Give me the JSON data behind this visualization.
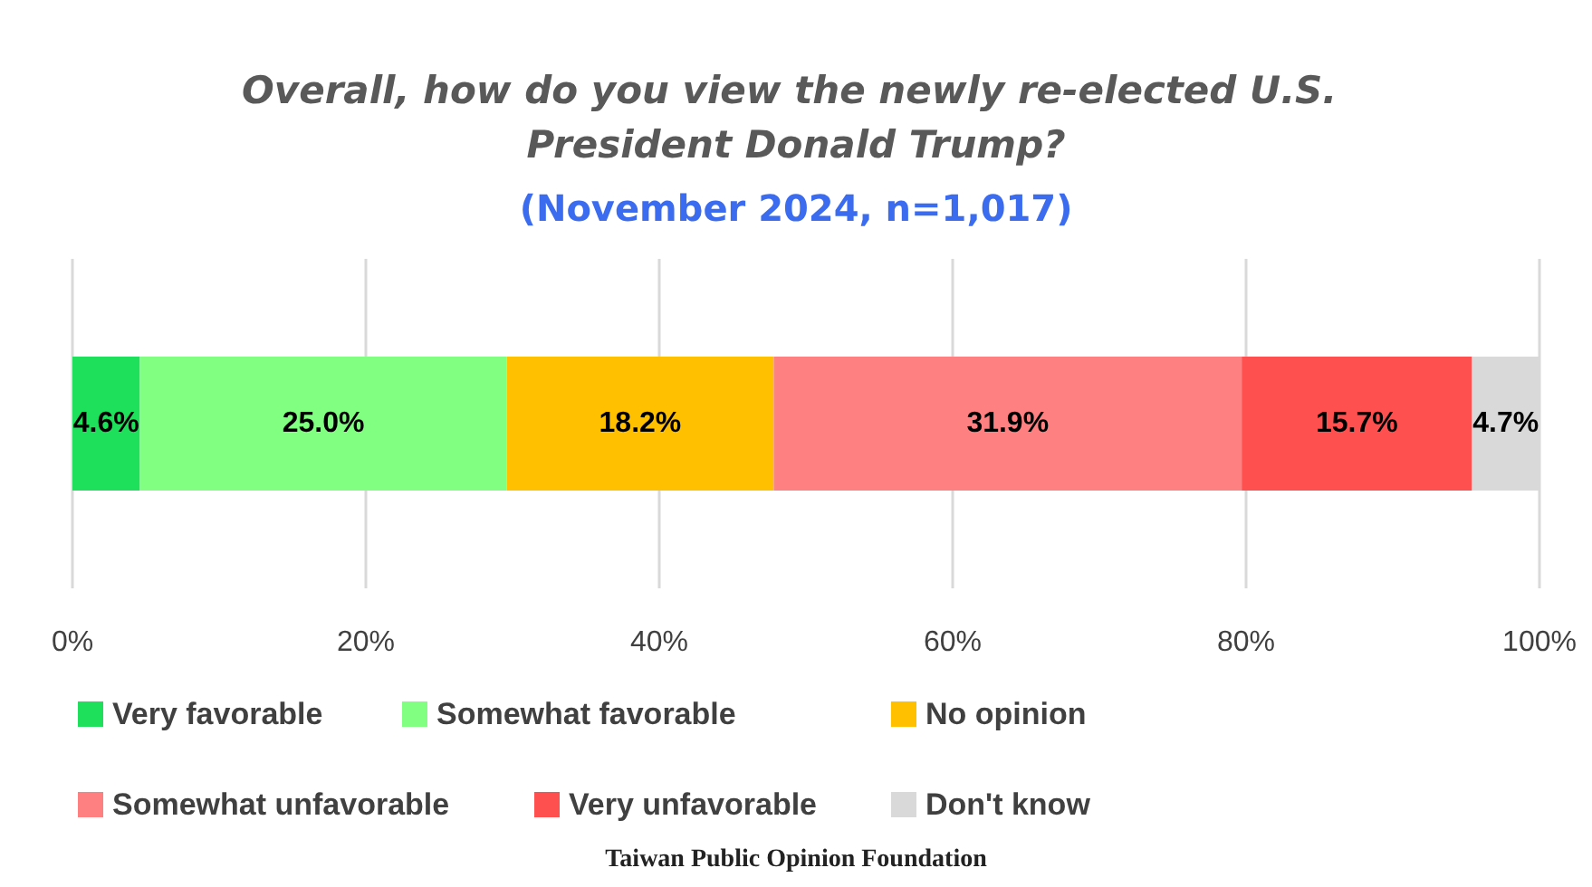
{
  "chart_data": {
    "type": "bar",
    "orientation": "horizontal",
    "stacked": true,
    "title": "Overall, how do you view the newly re-elected U.S. President Donald Trump?",
    "subtitle": "(November 2024, n=1,017)",
    "annotations": [
      "Taiwan Public Opinion Foundation"
    ],
    "categories": [
      null
    ],
    "series": [
      {
        "name": "Very favorable",
        "color": "#1ee05a",
        "values": [
          4.6
        ],
        "value_labels": [
          "4.6%"
        ]
      },
      {
        "name": "Somewhat favorable",
        "color": "#80ff80",
        "values": [
          25.0
        ],
        "value_labels": [
          "25.0%"
        ]
      },
      {
        "name": "No opinion",
        "color": "#ffc000",
        "values": [
          18.2
        ],
        "value_labels": [
          "18.2%"
        ]
      },
      {
        "name": "Somewhat unfavorable",
        "color": "#ff8080",
        "values": [
          31.9
        ],
        "value_labels": [
          "31.9%"
        ]
      },
      {
        "name": "Very unfavorable",
        "color": "#ff5050",
        "values": [
          15.7
        ],
        "value_labels": [
          "15.7%"
        ]
      },
      {
        "name": "Don't know",
        "color": "#d9d9d9",
        "values": [
          4.7
        ],
        "value_labels": [
          "4.7%"
        ]
      }
    ],
    "xlim": [
      0,
      100
    ],
    "xticks": [
      {
        "value": 0,
        "label": "0%"
      },
      {
        "value": 20,
        "label": "20%"
      },
      {
        "value": 40,
        "label": "40%"
      },
      {
        "value": 60,
        "label": "60%"
      },
      {
        "value": 80,
        "label": "80%"
      },
      {
        "value": 100,
        "label": "100%"
      }
    ],
    "grid": "x",
    "legend": "bottom"
  }
}
